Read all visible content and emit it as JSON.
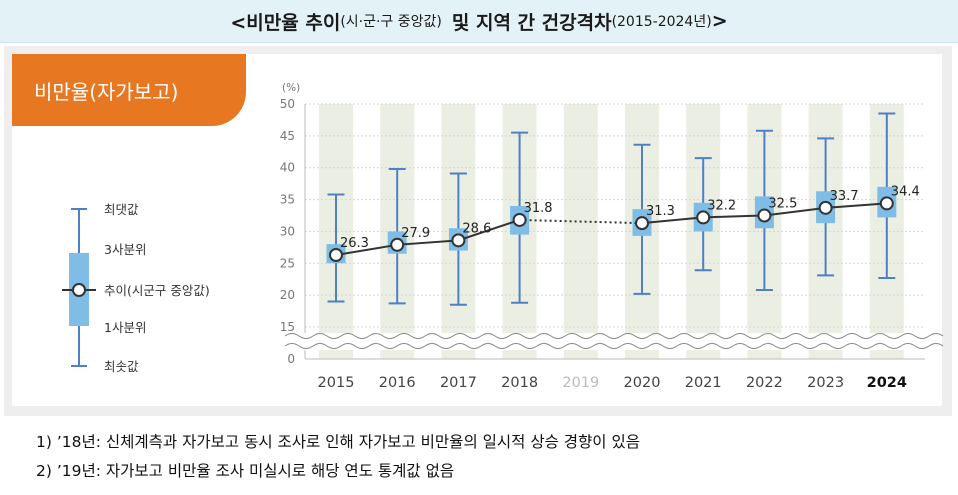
{
  "title": {
    "part1": "<비만율 추이",
    "part1_small": "(시·군·구 중앙값)",
    "part2": "및 지역 간 건강격차",
    "part2_small": "(2015-2024년)",
    "close": ">"
  },
  "badge": "비만율(자가보고)",
  "legend": {
    "max": "최댓값",
    "q3": "3사분위",
    "median": "추이(시군구 중앙값)",
    "q1": "1사분위",
    "min": "최솟값"
  },
  "notes": [
    "1)  ’18년: 신체계측과 자가보고 동시 조사로 인해 자가보고 비만율의 일시적 상승 경향이 있음",
    "2)  ’19년: 자가보고 비만율 조사 미실시로 해당 연도 통계값 없음"
  ],
  "colors": {
    "accent": "#e87722",
    "box": "#7fbde6",
    "whisker": "#4f7fc4",
    "line": "#333333",
    "band": "#ebeee3",
    "title_bg": "#e3f2f6"
  },
  "chart_data": {
    "type": "boxplot-line",
    "unit": "(%)",
    "categories": [
      "2015",
      "2016",
      "2017",
      "2018",
      "2019",
      "2020",
      "2021",
      "2022",
      "2023",
      "2024"
    ],
    "median": [
      26.3,
      27.9,
      28.6,
      31.8,
      null,
      31.3,
      32.2,
      32.5,
      33.7,
      34.4
    ],
    "q1": [
      25.0,
      26.5,
      27.0,
      29.5,
      null,
      29.3,
      30.0,
      30.5,
      31.3,
      32.2
    ],
    "q3": [
      28.0,
      30.0,
      30.5,
      34.0,
      null,
      33.5,
      34.5,
      35.5,
      36.3,
      37.0
    ],
    "min": [
      19.0,
      18.7,
      18.5,
      18.8,
      null,
      20.2,
      23.9,
      20.8,
      23.1,
      22.7
    ],
    "max": [
      35.8,
      39.8,
      39.1,
      45.5,
      null,
      43.6,
      41.5,
      45.8,
      44.6,
      48.5
    ],
    "labels": [
      "26.3",
      "27.9",
      "28.6",
      "31.8",
      "",
      "31.3",
      "32.2",
      "32.5",
      "33.7",
      "34.4"
    ],
    "yticks": [
      50,
      45,
      40,
      35,
      30,
      25,
      20,
      15,
      0
    ],
    "ylim": [
      15,
      50
    ],
    "missing_year": "2019",
    "highlight_year": "2024",
    "axis_break": true,
    "dotted_segment": [
      "2018",
      "2020"
    ]
  }
}
